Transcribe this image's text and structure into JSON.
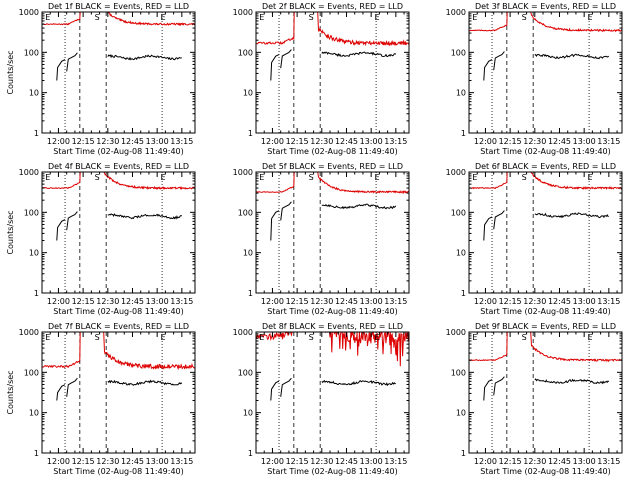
{
  "colors": {
    "events": "#000000",
    "lld": "#dd0000",
    "axes": "#000000",
    "background": "#ffffff"
  },
  "chart_data": [
    {
      "type": "line",
      "title": "Det 1f BLACK = Events, RED = LLD",
      "xlabel": "Start Time (02-Aug-08 11:49:40)",
      "ylabel": "Counts/sec",
      "y_scale": "log",
      "ylim": [
        1,
        1000
      ],
      "xlim_minutes_after_12_00": [
        -10,
        83
      ],
      "x_tick_labels": [
        "12:00",
        "12:15",
        "12:30",
        "12:45",
        "13:00",
        "13:15"
      ],
      "y_tick_labels": [
        "1",
        "10",
        "100",
        "1000"
      ],
      "markers": [
        "E",
        "S",
        "E"
      ],
      "lld_level": 500,
      "lld_noise": "low",
      "events_level": 75,
      "events_left": 60
    },
    {
      "type": "line",
      "title": "Det 2f BLACK = Events, RED = LLD",
      "xlabel": "Start Time (02-Aug-08 11:49:40)",
      "ylabel": "",
      "y_scale": "log",
      "ylim": [
        1,
        1000
      ],
      "xlim_minutes_after_12_00": [
        -10,
        83
      ],
      "x_tick_labels": [
        "12:00",
        "12:15",
        "12:30",
        "12:45",
        "13:00",
        "13:15"
      ],
      "y_tick_labels": [
        "1",
        "10",
        "100",
        "1000"
      ],
      "markers": [
        "E",
        "S",
        "E"
      ],
      "lld_level": 170,
      "lld_noise": "mid",
      "events_level": 90,
      "events_left": 80
    },
    {
      "type": "line",
      "title": "Det 3f BLACK = Events, RED = LLD",
      "xlabel": "Start Time (02-Aug-08 11:49:40)",
      "ylabel": "",
      "y_scale": "log",
      "ylim": [
        1,
        1000
      ],
      "xlim_minutes_after_12_00": [
        -10,
        83
      ],
      "x_tick_labels": [
        "12:00",
        "12:15",
        "12:30",
        "12:45",
        "13:00",
        "13:15"
      ],
      "y_tick_labels": [
        "1",
        "10",
        "100",
        "1000"
      ],
      "markers": [
        "E",
        "S",
        "E"
      ],
      "lld_level": 350,
      "lld_noise": "low",
      "events_level": 80,
      "events_left": 60
    },
    {
      "type": "line",
      "title": "Det 4f BLACK = Events, RED = LLD",
      "xlabel": "Start Time (02-Aug-08 11:49:40)",
      "ylabel": "Counts/sec",
      "y_scale": "log",
      "ylim": [
        1,
        1000
      ],
      "xlim_minutes_after_12_00": [
        -10,
        83
      ],
      "x_tick_labels": [
        "12:00",
        "12:15",
        "12:30",
        "12:45",
        "13:00",
        "13:15"
      ],
      "y_tick_labels": [
        "1",
        "10",
        "100",
        "1000"
      ],
      "markers": [
        "E",
        "S",
        "E"
      ],
      "lld_level": 400,
      "lld_noise": "low",
      "events_level": 80,
      "events_left": 60
    },
    {
      "type": "line",
      "title": "Det 5f BLACK = Events, RED = LLD",
      "xlabel": "Start Time (02-Aug-08 11:49:40)",
      "ylabel": "",
      "y_scale": "log",
      "ylim": [
        1,
        1000
      ],
      "xlim_minutes_after_12_00": [
        -10,
        83
      ],
      "x_tick_labels": [
        "12:00",
        "12:15",
        "12:30",
        "12:45",
        "13:00",
        "13:15"
      ],
      "y_tick_labels": [
        "1",
        "10",
        "100",
        "1000"
      ],
      "markers": [
        "E",
        "S",
        "E"
      ],
      "lld_level": 320,
      "lld_noise": "low",
      "events_level": 140,
      "events_left": 100
    },
    {
      "type": "line",
      "title": "Det 6f BLACK = Events, RED = LLD",
      "xlabel": "Start Time (02-Aug-08 11:49:40)",
      "ylabel": "",
      "y_scale": "log",
      "ylim": [
        1,
        1000
      ],
      "xlim_minutes_after_12_00": [
        -10,
        83
      ],
      "x_tick_labels": [
        "12:00",
        "12:15",
        "12:30",
        "12:45",
        "13:00",
        "13:15"
      ],
      "y_tick_labels": [
        "1",
        "10",
        "100",
        "1000"
      ],
      "markers": [
        "E",
        "S",
        "E"
      ],
      "lld_level": 400,
      "lld_noise": "low",
      "events_level": 85,
      "events_left": 70
    },
    {
      "type": "line",
      "title": "Det 7f BLACK = Events, RED = LLD",
      "xlabel": "Start Time (02-Aug-08 11:49:40)",
      "ylabel": "Counts/sec",
      "y_scale": "log",
      "ylim": [
        1,
        1000
      ],
      "xlim_minutes_after_12_00": [
        -10,
        83
      ],
      "x_tick_labels": [
        "12:00",
        "12:15",
        "12:30",
        "12:45",
        "13:00",
        "13:15"
      ],
      "y_tick_labels": [
        "1",
        "10",
        "100",
        "1000"
      ],
      "markers": [
        "E",
        "S",
        "E"
      ],
      "lld_level": 140,
      "lld_noise": "mid",
      "events_level": 55,
      "events_left": 45
    },
    {
      "type": "line",
      "title": "Det 8f BLACK = Events, RED = LLD",
      "xlabel": "Start Time (02-Aug-08 11:49:40)",
      "ylabel": "",
      "y_scale": "log",
      "ylim": [
        1,
        1000
      ],
      "xlim_minutes_after_12_00": [
        -10,
        83
      ],
      "x_tick_labels": [
        "12:00",
        "12:15",
        "12:30",
        "12:45",
        "13:00",
        "13:15"
      ],
      "y_tick_labels": [
        "1",
        "10",
        "100",
        "1000"
      ],
      "markers": [
        "E",
        "S",
        "E"
      ],
      "lld_level": 800,
      "lld_noise": "spiky",
      "events_level": 55,
      "events_left": 55
    },
    {
      "type": "line",
      "title": "Det 9f BLACK = Events, RED = LLD",
      "xlabel": "Start Time (02-Aug-08 11:49:40)",
      "ylabel": "",
      "y_scale": "log",
      "ylim": [
        1,
        1000
      ],
      "xlim_minutes_after_12_00": [
        -10,
        83
      ],
      "x_tick_labels": [
        "12:00",
        "12:15",
        "12:30",
        "12:45",
        "13:00",
        "13:15"
      ],
      "y_tick_labels": [
        "1",
        "10",
        "100",
        "1000"
      ],
      "markers": [
        "E",
        "S",
        "E"
      ],
      "lld_level": 200,
      "lld_noise": "low",
      "events_level": 60,
      "events_left": 60
    }
  ]
}
